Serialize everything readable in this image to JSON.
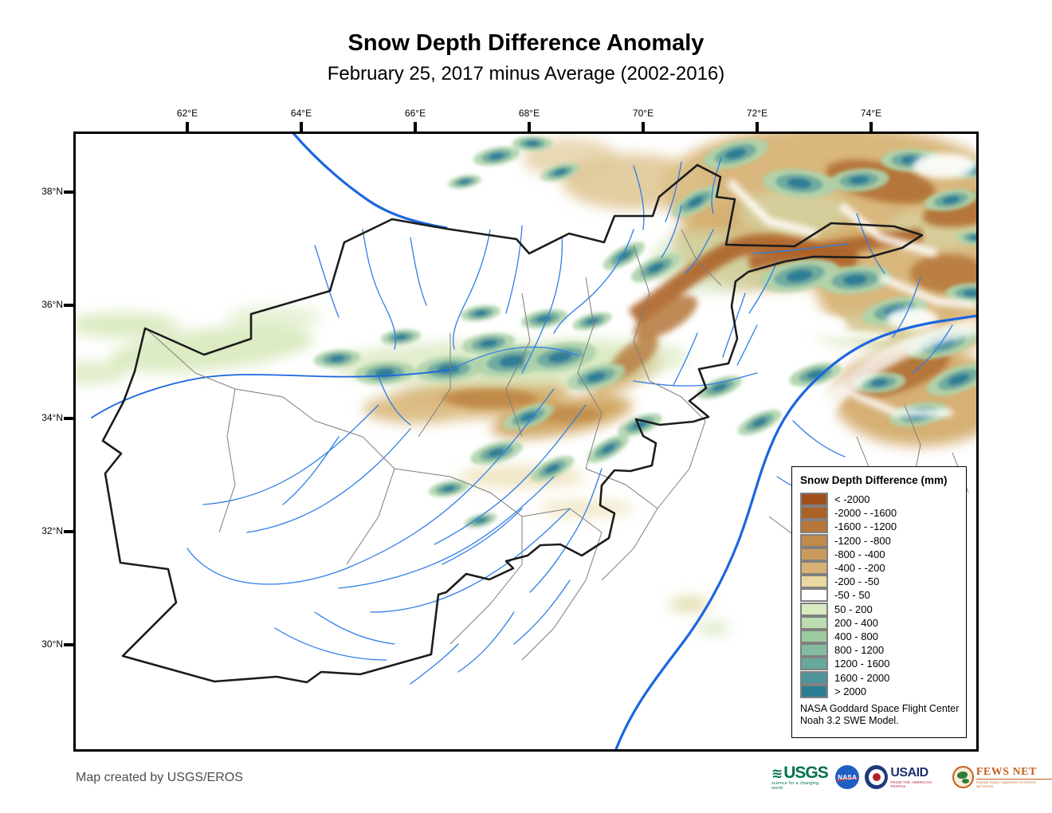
{
  "header": {
    "title": "Snow Depth Difference Anomaly",
    "subtitle": "February 25, 2017 minus Average (2002-2016)"
  },
  "axes": {
    "longitude_ticks": [
      "62°E",
      "64°E",
      "66°E",
      "68°E",
      "70°E",
      "72°E",
      "74°E"
    ],
    "latitude_ticks": [
      "38°N",
      "36°N",
      "34°N",
      "32°N",
      "30°N"
    ]
  },
  "legend": {
    "title": "Snow Depth Difference (mm)",
    "items": [
      {
        "label": "< -2000",
        "color": "#9e4f1a"
      },
      {
        "label": "-2000 - -1600",
        "color": "#ab6227"
      },
      {
        "label": "-1600 - -1200",
        "color": "#b77738"
      },
      {
        "label": "-1200 - -800",
        "color": "#c1894a"
      },
      {
        "label": "-800 - -400",
        "color": "#cb9b5e"
      },
      {
        "label": "-400 - -200",
        "color": "#d7b175"
      },
      {
        "label": "-200 - -50",
        "color": "#e9d8a1"
      },
      {
        "label": "-50 - 50",
        "color": "#ffffff"
      },
      {
        "label": "50 - 200",
        "color": "#d8eac0"
      },
      {
        "label": "200 - 400",
        "color": "#badcb0"
      },
      {
        "label": "400 - 800",
        "color": "#9ccaa0"
      },
      {
        "label": "800 - 1200",
        "color": "#83bca0"
      },
      {
        "label": "1200 - 1600",
        "color": "#67a89d"
      },
      {
        "label": "1600 - 2000",
        "color": "#4e959a"
      },
      {
        "label": "> 2000",
        "color": "#2d7e94"
      }
    ],
    "source_line1": "NASA Goddard Space Flight Center",
    "source_line2": "Noah 3.2 SWE Model."
  },
  "credit": "Map created by USGS/EROS",
  "logos": {
    "usgs": {
      "name": "USGS",
      "wave": "≋",
      "tagline": "science for a changing world"
    },
    "nasa": {
      "name": "NASA"
    },
    "usaid": {
      "name": "USAID",
      "tagline": "FROM THE AMERICAN PEOPLE"
    },
    "fewsnet": {
      "name": "FEWS NET",
      "tagline": "FAMINE EARLY WARNING SYSTEMS NETWORK"
    }
  },
  "map_colors": {
    "country_border": "#1c1c1c",
    "admin_boundary": "#7d7d7d",
    "stream": "#2e7ee6",
    "major_river": "#1c66df",
    "negative_anomaly_base": "#d9b77d",
    "positive_anomaly_core": "#2e7e95"
  }
}
